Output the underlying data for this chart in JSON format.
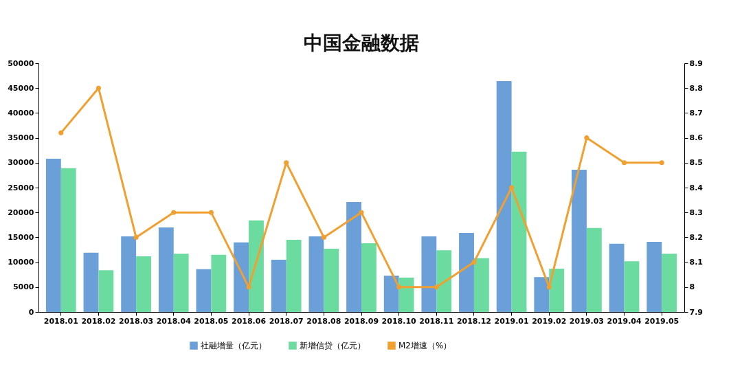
{
  "chart_data": {
    "type": "bar",
    "title": "中国金融数据",
    "categories": [
      "2018.01",
      "2018.02",
      "2018.03",
      "2018.04",
      "2018.05",
      "2018.06",
      "2018.07",
      "2018.08",
      "2018.09",
      "2018.10",
      "2018.11",
      "2018.12",
      "2019.01",
      "2019.02",
      "2019.03",
      "2019.04",
      "2019.05"
    ],
    "series": [
      {
        "name": "社融增量（亿元）",
        "color": "#6a9fd8",
        "values": [
          30800,
          11900,
          15200,
          17000,
          8600,
          14000,
          10500,
          15200,
          22100,
          7300,
          15200,
          15900,
          46400,
          7000,
          28600,
          13700,
          14100
        ]
      },
      {
        "name": "新增信贷（亿元）",
        "color": "#6cdba0",
        "values": [
          28900,
          8400,
          11200,
          11700,
          11500,
          18400,
          14500,
          12700,
          13800,
          6900,
          12400,
          10800,
          32200,
          8700,
          16900,
          10200,
          11700
        ]
      },
      {
        "name": "M2增速（%）",
        "type": "line",
        "axis": "y2",
        "color": "#f0a030",
        "values": [
          8.62,
          8.8,
          8.2,
          8.3,
          8.3,
          8.0,
          8.5,
          8.2,
          8.3,
          8.0,
          8.0,
          8.1,
          8.4,
          8.0,
          8.6,
          8.5,
          8.5
        ]
      }
    ],
    "ylim": [
      0,
      50000
    ],
    "yticks": [
      0,
      5000,
      10000,
      15000,
      20000,
      25000,
      30000,
      35000,
      40000,
      45000,
      50000
    ],
    "y2lim": [
      7.9,
      8.9
    ],
    "y2ticks": [
      7.9,
      8,
      8.1,
      8.2,
      8.3,
      8.4,
      8.5,
      8.6,
      8.7,
      8.8,
      8.9
    ],
    "marker": "circle",
    "legend": "bottom",
    "grid": false
  }
}
